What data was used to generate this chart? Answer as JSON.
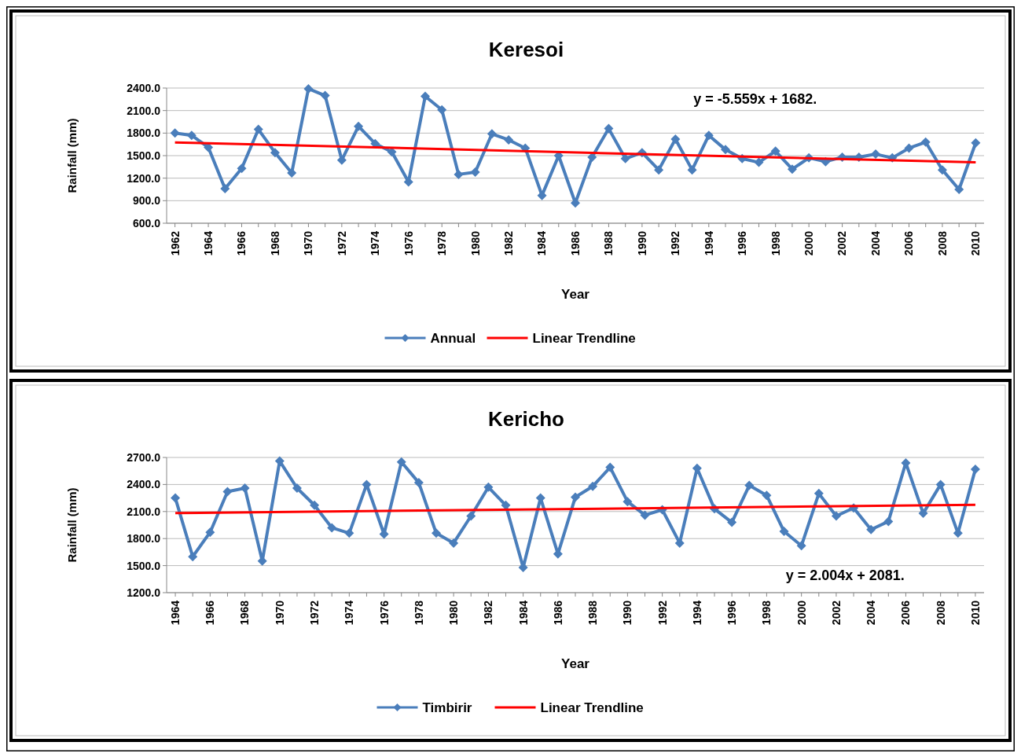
{
  "chart_data": [
    {
      "type": "line",
      "title": "Keresoi",
      "xlabel": "Year",
      "ylabel": "Rainfall (mm)",
      "annotations": [
        "y = -5.559x + 1682."
      ],
      "x": [
        1962,
        1963,
        1964,
        1965,
        1966,
        1967,
        1968,
        1969,
        1970,
        1971,
        1972,
        1973,
        1974,
        1975,
        1976,
        1977,
        1978,
        1979,
        1980,
        1981,
        1982,
        1983,
        1984,
        1985,
        1986,
        1987,
        1988,
        1989,
        1990,
        1991,
        1992,
        1993,
        1994,
        1995,
        1996,
        1997,
        1998,
        1999,
        2000,
        2001,
        2002,
        2003,
        2004,
        2005,
        2006,
        2007,
        2008,
        2009,
        2010
      ],
      "xlim": [
        1961.5,
        2010.5
      ],
      "xticks": [
        1962,
        {
          "value": 1963,
          "label": null
        },
        1964,
        {
          "value": 1965,
          "label": null
        },
        1966,
        {
          "value": 1967,
          "label": null
        },
        1968,
        {
          "value": 1969,
          "label": null
        },
        1970,
        {
          "value": 1971,
          "label": null
        },
        1972,
        {
          "value": 1973,
          "label": null
        },
        1974,
        {
          "value": 1975,
          "label": null
        },
        1976,
        {
          "value": 1977,
          "label": null
        },
        1978,
        {
          "value": 1979,
          "label": null
        },
        1980,
        {
          "value": 1981,
          "label": null
        },
        1982,
        {
          "value": 1983,
          "label": null
        },
        1984,
        {
          "value": 1985,
          "label": null
        },
        1986,
        {
          "value": 1987,
          "label": null
        },
        1988,
        {
          "value": 1989,
          "label": null
        },
        1990,
        {
          "value": 1991,
          "label": null
        },
        1992,
        {
          "value": 1993,
          "label": null
        },
        1994,
        {
          "value": 1995,
          "label": null
        },
        1996,
        {
          "value": 1997,
          "label": null
        },
        1998,
        {
          "value": 1999,
          "label": null
        },
        2000,
        {
          "value": 2001,
          "label": null
        },
        2002,
        {
          "value": 2003,
          "label": null
        },
        2004,
        {
          "value": 2005,
          "label": null
        },
        2006,
        {
          "value": 2007,
          "label": null
        },
        2008,
        {
          "value": 2009,
          "label": null
        },
        2010
      ],
      "ylim": [
        600,
        2400
      ],
      "yticks": [
        {
          "value": 600,
          "label": "600.0"
        },
        {
          "value": 900,
          "label": "900.0"
        },
        {
          "value": 1200,
          "label": "1200.0"
        },
        {
          "value": 1500,
          "label": "1500.0"
        },
        {
          "value": 1800,
          "label": "1800.0"
        },
        {
          "value": 2100,
          "label": "2100.0"
        },
        {
          "value": 2400,
          "label": "2400.0"
        }
      ],
      "grid": "y",
      "legend": "bottom",
      "marker": "diamond",
      "series": [
        {
          "name": "Annual",
          "color": "#4a7ebb",
          "values": [
            1800,
            1770,
            1610,
            1060,
            1330,
            1850,
            1540,
            1270,
            2390,
            2300,
            1440,
            1890,
            1660,
            1550,
            1150,
            2290,
            2110,
            1250,
            1280,
            1790,
            1710,
            1600,
            970,
            1500,
            870,
            1480,
            1860,
            1460,
            1540,
            1310,
            1720,
            1310,
            1770,
            1580,
            1460,
            1410,
            1560,
            1320,
            1470,
            1420,
            1480,
            1480,
            1520,
            1470,
            1600,
            1680,
            1310,
            1050,
            1670
          ]
        },
        {
          "name": "Linear Trendline",
          "color": "#ff0000",
          "marker": "none",
          "x": [
            1962,
            2010
          ],
          "values": [
            1676,
            1410
          ]
        }
      ]
    },
    {
      "type": "line",
      "title": "Kericho",
      "xlabel": "Year",
      "ylabel": "Rainfall (mm)",
      "annotations": [
        "y = 2.004x + 2081."
      ],
      "x": [
        1964,
        1965,
        1966,
        1967,
        1968,
        1969,
        1970,
        1971,
        1972,
        1973,
        1974,
        1975,
        1976,
        1977,
        1978,
        1979,
        1980,
        1981,
        1982,
        1983,
        1984,
        1985,
        1986,
        1987,
        1988,
        1989,
        1990,
        1991,
        1992,
        1993,
        1994,
        1995,
        1996,
        1997,
        1998,
        1999,
        2000,
        2001,
        2002,
        2003,
        2004,
        2005,
        2006,
        2007,
        2008,
        2009,
        2010
      ],
      "xlim": [
        1963.5,
        2010.5
      ],
      "xticks": [
        1964,
        {
          "value": 1965,
          "label": null
        },
        1966,
        {
          "value": 1967,
          "label": null
        },
        1968,
        {
          "value": 1969,
          "label": null
        },
        1970,
        {
          "value": 1971,
          "label": null
        },
        1972,
        {
          "value": 1973,
          "label": null
        },
        1974,
        {
          "value": 1975,
          "label": null
        },
        1976,
        {
          "value": 1977,
          "label": null
        },
        1978,
        {
          "value": 1979,
          "label": null
        },
        1980,
        {
          "value": 1981,
          "label": null
        },
        1982,
        {
          "value": 1983,
          "label": null
        },
        1984,
        {
          "value": 1985,
          "label": null
        },
        1986,
        {
          "value": 1987,
          "label": null
        },
        1988,
        {
          "value": 1989,
          "label": null
        },
        1990,
        {
          "value": 1991,
          "label": null
        },
        1992,
        {
          "value": 1993,
          "label": null
        },
        1994,
        {
          "value": 1995,
          "label": null
        },
        1996,
        {
          "value": 1997,
          "label": null
        },
        1998,
        {
          "value": 1999,
          "label": null
        },
        2000,
        {
          "value": 2001,
          "label": null
        },
        2002,
        {
          "value": 2003,
          "label": null
        },
        2004,
        {
          "value": 2005,
          "label": null
        },
        2006,
        {
          "value": 2007,
          "label": null
        },
        2008,
        {
          "value": 2009,
          "label": null
        },
        2010
      ],
      "ylim": [
        1200,
        2700
      ],
      "yticks": [
        {
          "value": 1200,
          "label": "1200.0"
        },
        {
          "value": 1500,
          "label": "1500.0"
        },
        {
          "value": 1800,
          "label": "1800.0"
        },
        {
          "value": 2100,
          "label": "2100.0"
        },
        {
          "value": 2400,
          "label": "2400.0"
        },
        {
          "value": 2700,
          "label": "2700.0"
        }
      ],
      "grid": "y",
      "legend": "bottom",
      "marker": "diamond",
      "series": [
        {
          "name": "Timbirir",
          "color": "#4a7ebb",
          "values": [
            2250,
            1600,
            1870,
            2320,
            2360,
            1550,
            2660,
            2360,
            2170,
            1920,
            1860,
            2400,
            1850,
            2650,
            2420,
            1860,
            1750,
            2050,
            2370,
            2170,
            1480,
            2250,
            1630,
            2260,
            2380,
            2590,
            2210,
            2060,
            2120,
            1750,
            2580,
            2130,
            1980,
            2390,
            2280,
            1880,
            1720,
            2300,
            2050,
            2140,
            1900,
            1990,
            2640,
            2080,
            2400,
            1860,
            2570
          ]
        },
        {
          "name": "Linear Trendline",
          "color": "#ff0000",
          "marker": "none",
          "x": [
            1964,
            2010
          ],
          "values": [
            2083,
            2175
          ]
        }
      ]
    }
  ]
}
